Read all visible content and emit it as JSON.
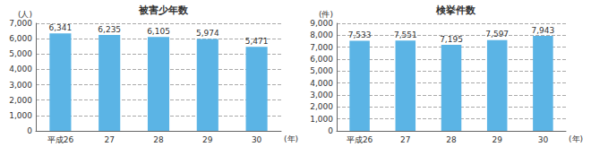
{
  "chart_data": [
    {
      "type": "bar",
      "title": "被害少年数",
      "ylabel": "(人)",
      "xlabel": "(年)",
      "categories": [
        "平成26",
        "27",
        "28",
        "29",
        "30"
      ],
      "values": [
        6341,
        6235,
        6105,
        5974,
        5471
      ],
      "value_labels": [
        "6,341",
        "6,235",
        "6,105",
        "5,974",
        "5,471"
      ],
      "color": "#5bb4e5",
      "data_labels": true,
      "grid": true,
      "ylim": [
        0,
        7000
      ],
      "yticks": [
        0,
        {
          "value": 1000,
          "label": "1,000"
        },
        {
          "value": 2000,
          "label": "2,000"
        },
        {
          "value": 3000,
          "label": "3,000"
        },
        {
          "value": 4000,
          "label": "4,000"
        },
        {
          "value": 5000,
          "label": "5,000"
        },
        {
          "value": 6000,
          "label": "6,000"
        },
        {
          "value": 7000,
          "label": "7,000"
        }
      ]
    },
    {
      "type": "bar",
      "title": "検挙件数",
      "ylabel": "(件)",
      "xlabel": "(年)",
      "categories": [
        "平成26",
        "27",
        "28",
        "29",
        "30"
      ],
      "values": [
        7533,
        7551,
        7195,
        7597,
        7943
      ],
      "value_labels": [
        "7,533",
        "7,551",
        "7,195",
        "7,597",
        "7,943"
      ],
      "color": "#5bb4e5",
      "data_labels": true,
      "grid": true,
      "ylim": [
        0,
        9000
      ],
      "yticks": [
        0,
        {
          "value": 1000,
          "label": "1,000"
        },
        {
          "value": 2000,
          "label": "2,000"
        },
        {
          "value": 3000,
          "label": "3,000"
        },
        {
          "value": 4000,
          "label": "4,000"
        },
        {
          "value": 5000,
          "label": "5,000"
        },
        {
          "value": 6000,
          "label": "6,000"
        },
        {
          "value": 7000,
          "label": "7,000"
        },
        {
          "value": 8000,
          "label": "8,000"
        },
        {
          "value": 9000,
          "label": "9,000"
        }
      ]
    }
  ]
}
